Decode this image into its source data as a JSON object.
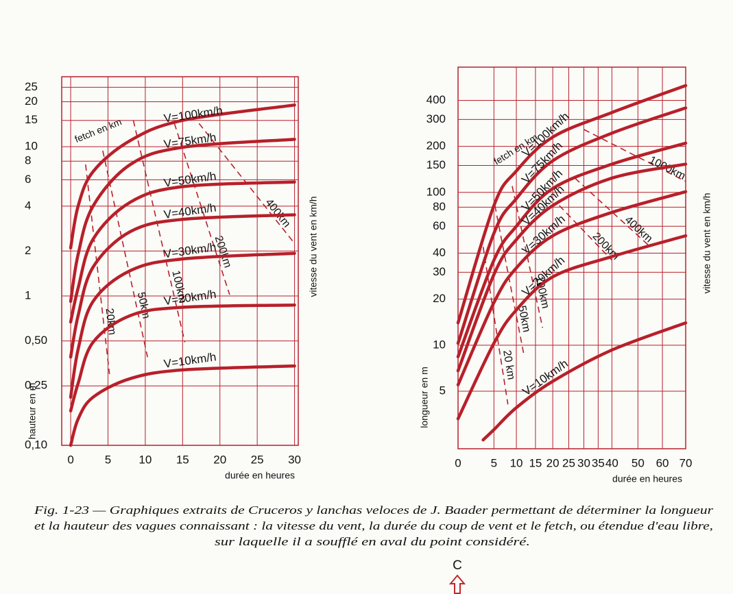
{
  "chart_data": [
    {
      "type": "line",
      "ylabel": "hauteur en m",
      "xlabel": "durée en heures",
      "y2label": "vitesse du vent en km/h",
      "annotation": "fetch en km",
      "xlim": [
        -1.2,
        30.5
      ],
      "xticks": [
        0,
        5,
        10,
        15,
        20,
        25,
        30
      ],
      "ylim": [
        0.1,
        29.4
      ],
      "ylog": true,
      "yticks": [
        {
          "value": 0.1,
          "label": "0,10"
        },
        {
          "value": 0.25,
          "label": "0,25"
        },
        {
          "value": 0.5,
          "label": "0,50"
        },
        1,
        2,
        4,
        6,
        8,
        10,
        15,
        20,
        25
      ],
      "grid": true,
      "color": "#b7202a",
      "series": [
        {
          "name": "V=100km/h",
          "x": [
            0,
            1,
            3,
            8,
            15,
            30
          ],
          "values": [
            2.1,
            4.0,
            6.8,
            11,
            15,
            19
          ]
        },
        {
          "name": "V=75km/h",
          "x": [
            0,
            1,
            3,
            8,
            15,
            30
          ],
          "values": [
            0.92,
            1.9,
            4.0,
            7.6,
            9.9,
            11.2
          ]
        },
        {
          "name": "V=50km/h",
          "x": [
            0,
            1,
            3,
            8,
            15,
            30
          ],
          "values": [
            0.67,
            1.13,
            2.4,
            4.25,
            5.4,
            5.8
          ]
        },
        {
          "name": "V=40km/h",
          "x": [
            0,
            1,
            3,
            8,
            15,
            30
          ],
          "values": [
            0.39,
            0.74,
            1.56,
            2.7,
            3.26,
            3.5
          ]
        },
        {
          "name": "V=30km/h",
          "x": [
            0,
            1,
            3,
            8,
            15,
            30
          ],
          "values": [
            0.21,
            0.44,
            0.92,
            1.48,
            1.77,
            1.93
          ]
        },
        {
          "name": "V=20km/h",
          "x": [
            0,
            1,
            3,
            8,
            15,
            30
          ],
          "values": [
            0.17,
            0.26,
            0.49,
            0.74,
            0.84,
            0.87
          ]
        },
        {
          "name": "V=10km/h",
          "x": [
            0,
            1,
            3,
            8,
            15,
            30
          ],
          "values": [
            0.1,
            0.15,
            0.21,
            0.28,
            0.32,
            0.34
          ]
        }
      ],
      "fetch_lines": [
        {
          "name": "20km",
          "x": [
            2.0,
            5.2
          ],
          "values": [
            7.6,
            0.3
          ]
        },
        {
          "name": "50km",
          "x": [
            4.3,
            10.3
          ],
          "values": [
            9.4,
            0.39
          ]
        },
        {
          "name": "100km",
          "x": [
            8.4,
            15.3
          ],
          "values": [
            15,
            0.49
          ]
        },
        {
          "name": "200km",
          "x": [
            13.9,
            21.3
          ],
          "values": [
            14.3,
            1.02
          ]
        },
        {
          "name": "400km",
          "x": [
            17.2,
            30
          ],
          "values": [
            14.3,
            2.25
          ]
        }
      ]
    },
    {
      "type": "line",
      "ylabel": "longueur en m",
      "xlabel": "durée en heures",
      "y2label": "vitesse du vent en km/h",
      "annotation": "fetch en km",
      "xlim": [
        0,
        70
      ],
      "xscale": "power",
      "xexponent": 0.7,
      "xticks": [
        0,
        5,
        10,
        15,
        20,
        25,
        30,
        35,
        40,
        50,
        60,
        70
      ],
      "ylim": [
        2.1,
        660
      ],
      "ylog": true,
      "yticks": [
        5,
        10,
        20,
        30,
        40,
        60,
        80,
        100,
        150,
        200,
        300,
        400
      ],
      "grid": true,
      "color": "#b7202a",
      "series": [
        {
          "name": "V=100km/h",
          "x": [
            0,
            5,
            10,
            20,
            40,
            70
          ],
          "values": [
            14,
            82,
            138,
            230,
            333,
            500
          ]
        },
        {
          "name": "V=75km/h",
          "x": [
            0,
            5,
            10,
            20,
            40,
            70
          ],
          "values": [
            10.3,
            54,
            91,
            161,
            244,
            357
          ]
        },
        {
          "name": "V=50km/h",
          "x": [
            0,
            5,
            10,
            20,
            40,
            70
          ],
          "values": [
            8.4,
            36,
            60,
            106,
            153,
            210
          ]
        },
        {
          "name": "V=40km/h",
          "x": [
            0,
            5,
            10,
            20,
            40,
            70
          ],
          "values": [
            6.8,
            29,
            49,
            82,
            124,
            153
          ]
        },
        {
          "name": "V=30km/h",
          "x": [
            0,
            5,
            10,
            20,
            40,
            70
          ],
          "values": [
            5.5,
            19,
            32,
            52,
            74,
            101
          ]
        },
        {
          "name": "V=20km/h",
          "x": [
            0,
            5,
            10,
            20,
            40,
            70
          ],
          "values": [
            3.3,
            10.3,
            17,
            28,
            38,
            52
          ]
        },
        {
          "name": "V=10km/h",
          "x": [
            3,
            5,
            10,
            20,
            40,
            70
          ],
          "values": [
            2.4,
            2.8,
            3.9,
            5.8,
            9.3,
            14
          ]
        }
      ],
      "fetch_lines": [
        {
          "name": "20 km",
          "x": [
            3,
            8
          ],
          "values": [
            44,
            4.1
          ]
        },
        {
          "name": "50km",
          "x": [
            5.2,
            12
          ],
          "values": [
            82,
            8.4
          ]
        },
        {
          "name": "100km",
          "x": [
            9,
            17
          ],
          "values": [
            110,
            13
          ]
        },
        {
          "name": "200km",
          "x": [
            22,
            40
          ],
          "values": [
            82,
            36
          ]
        },
        {
          "name": "400km",
          "x": [
            27,
            55
          ],
          "values": [
            124,
            44
          ]
        },
        {
          "name": "1000km",
          "x": [
            30,
            70
          ],
          "values": [
            258,
            118
          ]
        }
      ]
    }
  ],
  "caption": [
    "Fig. 1-23 — Graphiques extraits de Cruceros y lanchas veloces de J. Baader permettant de déterminer la longueur",
    "et la hauteur des vagues connaissant : la vitesse du vent, la durée du coup de vent et le fetch, ou étendue d'eau libre,",
    "sur laquelle il a soufflé en aval du point considéré."
  ],
  "marker": "C"
}
